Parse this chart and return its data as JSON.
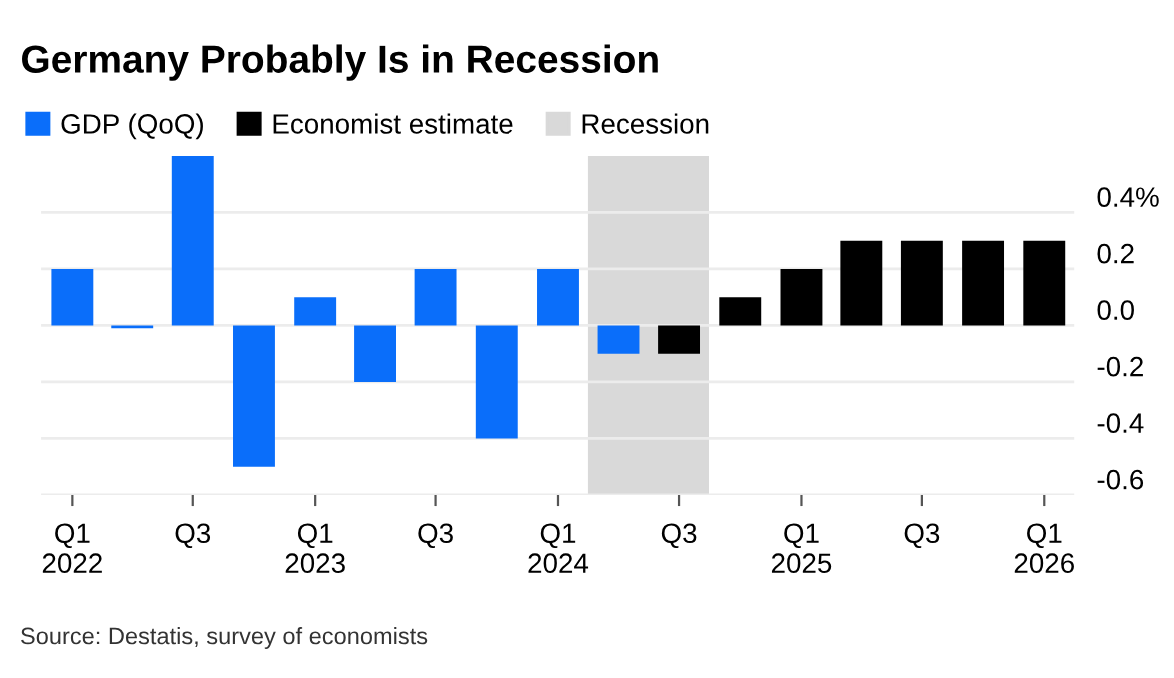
{
  "chart_data": {
    "type": "bar",
    "title": "Germany Probably Is in Recession",
    "x": [
      "2022-01",
      "2022-04",
      "2022-07",
      "2022-10",
      "2023-01",
      "2023-04",
      "2023-07",
      "2023-10",
      "2024-01",
      "2024-04",
      "2024-07",
      "2024-10",
      "2025-01",
      "2025-04",
      "2025-07",
      "2025-10",
      "2026-01"
    ],
    "series": [
      {
        "name": "GDP (QoQ)",
        "color": "#0a6efa",
        "values": [
          0.2,
          -0.01,
          0.6,
          -0.5,
          0.1,
          -0.2,
          0.2,
          -0.4,
          0.2,
          -0.1,
          null,
          null,
          null,
          null,
          null,
          null,
          null
        ]
      },
      {
        "name": "Economist estimate",
        "color": "#000000",
        "values": [
          null,
          null,
          null,
          null,
          null,
          null,
          null,
          null,
          null,
          null,
          -0.1,
          0.1,
          0.2,
          0.3,
          0.3,
          0.3,
          0.3
        ]
      }
    ],
    "bands": [
      {
        "axis": "x",
        "from": "2024-02-15",
        "to": "2024-08-15",
        "label": "Recession",
        "color": "#d9d9d9"
      }
    ],
    "xlim": [
      "2021-11-15",
      "2026-02-15"
    ],
    "xticks": [
      {
        "value": "2022-01",
        "label": "Q1\n2022"
      },
      {
        "value": "2022-07",
        "label": "Q3"
      },
      {
        "value": "2023-01",
        "label": "Q1\n2023"
      },
      {
        "value": "2023-07",
        "label": "Q3"
      },
      {
        "value": "2024-01",
        "label": "Q1\n2024"
      },
      {
        "value": "2024-07",
        "label": "Q3"
      },
      {
        "value": "2025-01",
        "label": "Q1\n2025"
      },
      {
        "value": "2025-07",
        "label": "Q3"
      },
      {
        "value": "2026-01",
        "label": "Q1\n2026"
      }
    ],
    "ylim": [
      -0.6,
      0.6
    ],
    "yticks": [
      {
        "value": 0.4,
        "label": "0.4%"
      },
      {
        "value": 0.2,
        "label": "0.2"
      },
      {
        "value": 0,
        "label": "0.0"
      },
      {
        "value": -0.2,
        "label": "-0.2"
      },
      {
        "value": -0.4,
        "label": "-0.4"
      },
      {
        "value": -0.6,
        "label": "-0.6"
      }
    ],
    "grid": "y",
    "legend": "top left",
    "annotations": [
      "Source: Destatis, survey of economists"
    ]
  }
}
